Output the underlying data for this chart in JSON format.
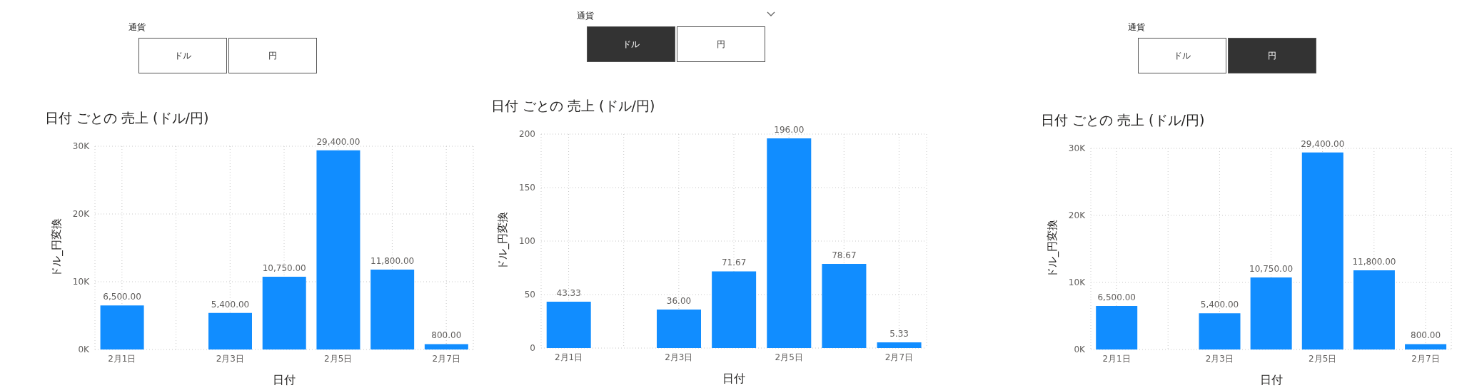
{
  "chart_data": [
    {
      "type": "other",
      "title": "通貨",
      "categories": [
        "ドル",
        "円"
      ],
      "colors": [
        "#ffffff",
        "#ffffff"
      ]
    },
    {
      "type": "other",
      "title": "通貨",
      "categories": [
        "ドル",
        "円"
      ],
      "colors": [
        "#333333",
        "#ffffff"
      ]
    },
    {
      "type": "other",
      "title": "通貨",
      "categories": [
        "ドル",
        "円"
      ],
      "colors": [
        "#ffffff",
        "#333333"
      ]
    },
    {
      "type": "bar",
      "title": "日付 ごとの 売上 (ドル/円)",
      "xlabel": "日付",
      "ylabel": "ドル_円変換",
      "categories": [
        "2月1日",
        null,
        "2月3日",
        null,
        "2月5日",
        null,
        "2月7日"
      ],
      "values": [
        6500,
        null,
        5400,
        10750,
        29400,
        11800,
        800
      ],
      "value_labels": [
        "6,500.00",
        null,
        "5,400.00",
        "10,750.00",
        "29,400.00",
        "11,800.00",
        "800.00"
      ],
      "color": "#118dff",
      "ylim": [
        0,
        30000
      ],
      "yticks": [
        {
          "value": 0,
          "label": "0K"
        },
        {
          "value": 10000,
          "label": "10K"
        },
        {
          "value": 20000,
          "label": "20K"
        },
        {
          "value": 30000,
          "label": "30K"
        }
      ],
      "grid": true
    },
    {
      "type": "bar",
      "title": "日付 ごとの 売上 (ドル/円)",
      "xlabel": "日付",
      "ylabel": "ドル_円変換",
      "categories": [
        "2月1日",
        null,
        "2月3日",
        null,
        "2月5日",
        null,
        "2月7日"
      ],
      "values": [
        43.33,
        null,
        36,
        71.67,
        196,
        78.67,
        5.33
      ],
      "value_labels": [
        "43.33",
        null,
        "36.00",
        "71.67",
        "196.00",
        "78.67",
        "5.33"
      ],
      "color": "#118dff",
      "ylim": [
        0,
        200
      ],
      "yticks": [
        0,
        50,
        100,
        150,
        200
      ],
      "grid": true
    },
    {
      "type": "bar",
      "title": "日付 ごとの 売上 (ドル/円)",
      "xlabel": "日付",
      "ylabel": "ドル_円変換",
      "categories": [
        "2月1日",
        null,
        "2月3日",
        null,
        "2月5日",
        null,
        "2月7日"
      ],
      "values": [
        6500,
        null,
        5400,
        10750,
        29400,
        11800,
        800
      ],
      "value_labels": [
        "6,500.00",
        null,
        "5,400.00",
        "10,750.00",
        "29,400.00",
        "11,800.00",
        "800.00"
      ],
      "color": "#118dff",
      "ylim": [
        0,
        30000
      ],
      "yticks": [
        {
          "value": 0,
          "label": "0K"
        },
        {
          "value": 10000,
          "label": "10K"
        },
        {
          "value": 20000,
          "label": "20K"
        },
        {
          "value": 30000,
          "label": "30K"
        }
      ],
      "grid": true
    }
  ]
}
